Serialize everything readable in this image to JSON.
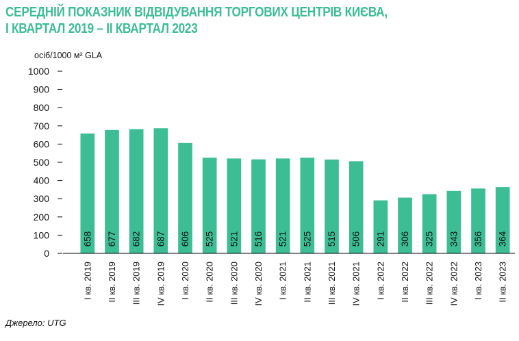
{
  "chart_data": {
    "type": "bar",
    "title": "СЕРЕДНІЙ ПОКАЗНИК ВІДВІДУВАННЯ ТОРГОВИХ ЦЕНТРІВ КИЄВА,",
    "subtitle": "І КВАРТАЛ 2019 – ІІ КВАРТАЛ 2023",
    "ylabel": "осіб/1000 м² GLA",
    "xlabel": "",
    "ylim": [
      0,
      1000
    ],
    "yticks": [
      0,
      100,
      200,
      300,
      400,
      500,
      600,
      700,
      800,
      900,
      1000
    ],
    "grid": false,
    "legend": "none",
    "bar_color": "#3dbd94",
    "categories": [
      "І кв. 2019",
      "ІІ кв. 2019",
      "ІІІ кв. 2019",
      "IV кв. 2019",
      "І кв. 2020",
      "ІІ кв. 2020",
      "ІІІ кв. 2020",
      "IV кв. 2020",
      "І кв. 2021",
      "ІІ кв. 2021",
      "ІІІ кв. 2021",
      "IV кв. 2021",
      "І кв. 2022",
      "ІІ кв. 2022",
      "ІІІ кв. 2022",
      "IV кв. 2022",
      "І кв. 2023",
      "ІІ кв. 2023"
    ],
    "values": [
      658,
      677,
      682,
      687,
      606,
      525,
      521,
      516,
      521,
      525,
      515,
      506,
      291,
      306,
      325,
      343,
      356,
      364
    ],
    "data_labels": [
      "658",
      "677",
      "682",
      "687",
      "606",
      "525",
      "521",
      "516",
      "521",
      "525",
      "515",
      "506",
      "291",
      "306",
      "325",
      "343",
      "356",
      "364"
    ]
  },
  "source": "Джерело: UTG"
}
